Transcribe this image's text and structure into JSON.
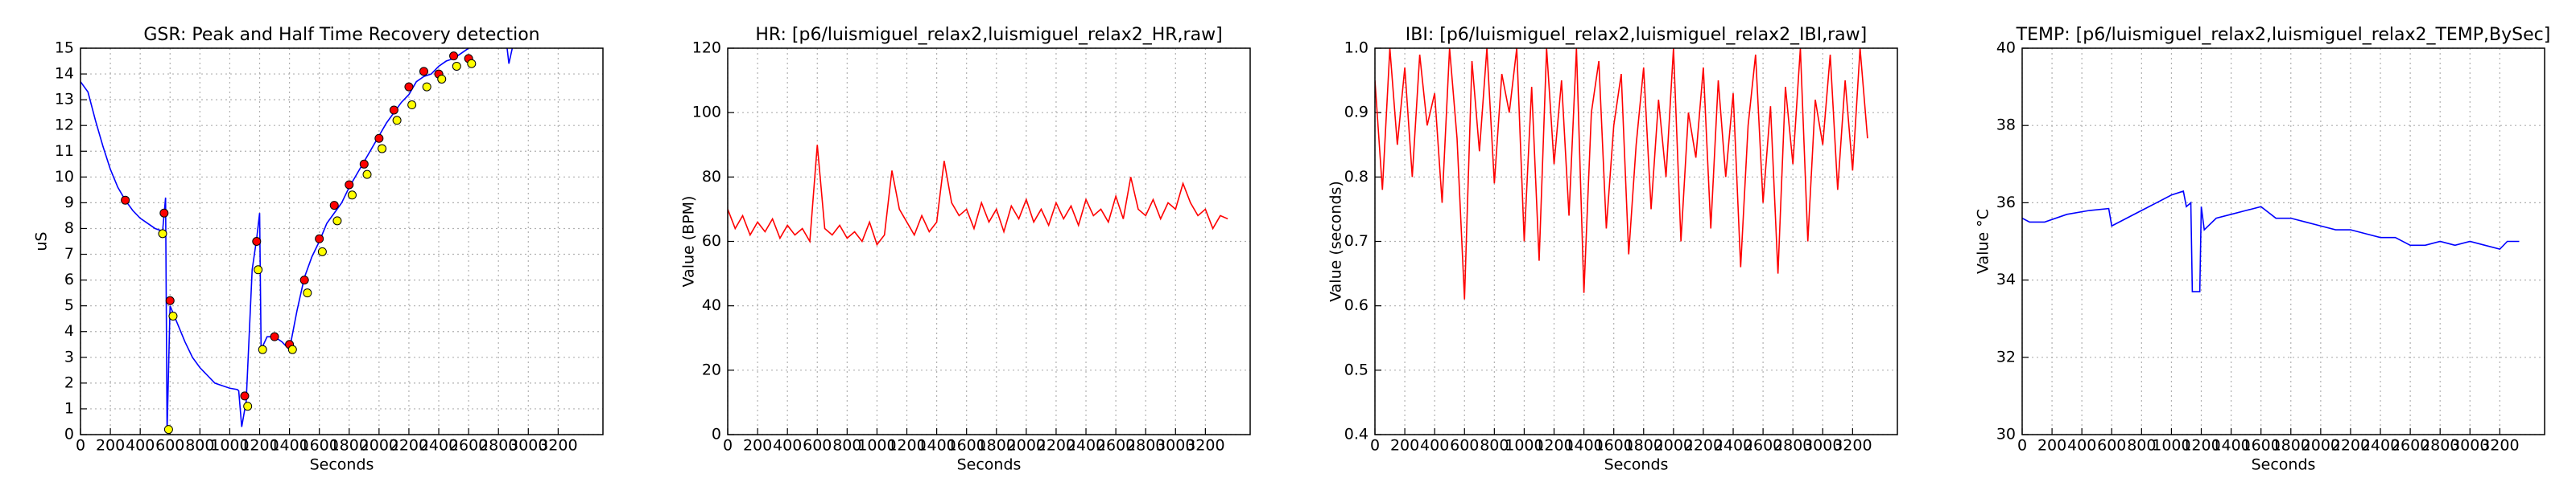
{
  "chart_data": [
    {
      "type": "line",
      "title": "GSR: Peak and Half Time Recovery detection",
      "xlabel": "Seconds",
      "ylabel": "uS",
      "xlim": [
        0,
        3500
      ],
      "xticks": [
        0,
        200,
        400,
        600,
        800,
        1000,
        1200,
        1400,
        1600,
        1800,
        2000,
        2200,
        2400,
        2600,
        2800,
        3000,
        3200
      ],
      "ylim": [
        0,
        15
      ],
      "yticks": [
        0,
        1,
        2,
        3,
        4,
        5,
        6,
        7,
        8,
        9,
        10,
        11,
        12,
        13,
        14,
        15
      ],
      "grid": true,
      "series": [
        {
          "color": "#0000ff",
          "style": "line",
          "x": [
            0,
            50,
            100,
            150,
            200,
            250,
            300,
            350,
            400,
            450,
            500,
            550,
            570,
            580,
            600,
            650,
            700,
            750,
            800,
            850,
            900,
            950,
            1000,
            1050,
            1060,
            1080,
            1110,
            1150,
            1180,
            1200,
            1210,
            1250,
            1300,
            1350,
            1400,
            1450,
            1500,
            1550,
            1600,
            1650,
            1700,
            1750,
            1800,
            1850,
            1900,
            1950,
            2000,
            2050,
            2100,
            2150,
            2200,
            2250,
            2300,
            2350,
            2400,
            2450,
            2500,
            2550,
            2600,
            2650,
            2850,
            2870,
            2900,
            3000
          ],
          "values": [
            13.7,
            13.3,
            12.2,
            11.2,
            10.3,
            9.6,
            9.1,
            8.7,
            8.4,
            8.2,
            8.0,
            7.9,
            9.2,
            0.1,
            5.0,
            4.3,
            3.6,
            3.0,
            2.6,
            2.3,
            2.0,
            1.9,
            1.8,
            1.75,
            1.7,
            0.3,
            1.3,
            6.4,
            7.6,
            8.6,
            3.3,
            3.8,
            3.8,
            3.6,
            3.3,
            4.8,
            6.1,
            6.9,
            7.5,
            8.2,
            8.6,
            9.0,
            9.6,
            10.1,
            10.6,
            11.1,
            11.6,
            12.1,
            12.5,
            12.9,
            13.2,
            13.7,
            13.9,
            14.0,
            14.3,
            14.5,
            14.6,
            14.8,
            15.0,
            15.3,
            15.4,
            14.4,
            15.2,
            15.6
          ]
        },
        {
          "color": "#ff0000",
          "style": "marker",
          "x": [
            300,
            560,
            600,
            1100,
            1180,
            1300,
            1400,
            1500,
            1600,
            1700,
            1800,
            1900,
            2000,
            2100,
            2200,
            2300,
            2400,
            2500,
            2600
          ],
          "values": [
            9.1,
            8.6,
            5.2,
            1.5,
            7.5,
            3.8,
            3.5,
            6.0,
            7.6,
            8.9,
            9.7,
            10.5,
            11.5,
            12.6,
            13.5,
            14.1,
            14.0,
            14.7,
            14.6
          ]
        },
        {
          "color": "#ffff00",
          "style": "marker",
          "x": [
            550,
            590,
            620,
            1120,
            1190,
            1220,
            1420,
            1520,
            1620,
            1720,
            1820,
            1920,
            2020,
            2120,
            2220,
            2320,
            2420,
            2520,
            2620
          ],
          "values": [
            7.8,
            0.2,
            4.6,
            1.1,
            6.4,
            3.3,
            3.3,
            5.5,
            7.1,
            8.3,
            9.3,
            10.1,
            11.1,
            12.2,
            12.8,
            13.5,
            13.8,
            14.3,
            14.4
          ]
        }
      ]
    },
    {
      "type": "line",
      "title": "HR: [p6/luismiguel_relax2,luismiguel_relax2_HR,raw]",
      "xlabel": "Seconds",
      "ylabel": "Value (BPM)",
      "xlim": [
        0,
        3500
      ],
      "xticks": [
        0,
        200,
        400,
        600,
        800,
        1000,
        1200,
        1400,
        1600,
        1800,
        2000,
        2200,
        2400,
        2600,
        2800,
        3000,
        3200
      ],
      "ylim": [
        0,
        120
      ],
      "yticks": [
        0,
        20,
        40,
        60,
        80,
        100,
        120
      ],
      "grid": true,
      "series": [
        {
          "color": "#ff0000",
          "style": "line",
          "x": [
            0,
            50,
            100,
            150,
            200,
            250,
            300,
            350,
            400,
            450,
            500,
            550,
            600,
            650,
            700,
            750,
            800,
            850,
            900,
            950,
            1000,
            1050,
            1100,
            1150,
            1200,
            1250,
            1300,
            1350,
            1400,
            1450,
            1500,
            1550,
            1600,
            1650,
            1700,
            1750,
            1800,
            1850,
            1900,
            1950,
            2000,
            2050,
            2100,
            2150,
            2200,
            2250,
            2300,
            2350,
            2400,
            2450,
            2500,
            2550,
            2600,
            2650,
            2700,
            2750,
            2800,
            2850,
            2900,
            2950,
            3000,
            3050,
            3100,
            3150,
            3200,
            3250,
            3300,
            3350
          ],
          "values": [
            70,
            64,
            68,
            62,
            66,
            63,
            67,
            61,
            65,
            62,
            64,
            60,
            90,
            64,
            62,
            65,
            61,
            63,
            60,
            66,
            59,
            62,
            82,
            70,
            66,
            62,
            68,
            63,
            66,
            85,
            72,
            68,
            70,
            64,
            72,
            66,
            70,
            63,
            71,
            67,
            73,
            66,
            70,
            65,
            72,
            67,
            71,
            65,
            73,
            68,
            70,
            66,
            74,
            67,
            80,
            70,
            68,
            73,
            67,
            72,
            70,
            78,
            72,
            68,
            70,
            64,
            68,
            67
          ]
        }
      ]
    },
    {
      "type": "line",
      "title": "IBI: [p6/luismiguel_relax2,luismiguel_relax2_IBI,raw]",
      "xlabel": "Seconds",
      "ylabel": "Value (seconds)",
      "xlim": [
        0,
        3500
      ],
      "xticks": [
        0,
        200,
        400,
        600,
        800,
        1000,
        1200,
        1400,
        1600,
        1800,
        2000,
        2200,
        2400,
        2600,
        2800,
        3000,
        3200
      ],
      "ylim": [
        0.4,
        1
      ],
      "yticks": [
        0.4,
        0.5,
        0.6,
        0.7,
        0.8,
        0.9,
        {
          "value": 1,
          "label": "1.0"
        }
      ],
      "grid": true,
      "series": [
        {
          "color": "#ff0000",
          "style": "line",
          "x": [
            0,
            50,
            100,
            150,
            200,
            250,
            300,
            350,
            400,
            450,
            500,
            550,
            600,
            650,
            700,
            750,
            800,
            850,
            900,
            950,
            1000,
            1050,
            1100,
            1150,
            1200,
            1250,
            1300,
            1350,
            1400,
            1450,
            1500,
            1550,
            1600,
            1650,
            1700,
            1750,
            1800,
            1850,
            1900,
            1950,
            2000,
            2050,
            2100,
            2150,
            2200,
            2250,
            2300,
            2350,
            2400,
            2450,
            2500,
            2550,
            2600,
            2650,
            2700,
            2750,
            2800,
            2850,
            2900,
            2950,
            3000,
            3050,
            3100,
            3150,
            3200,
            3250,
            3300
          ],
          "values": [
            0.95,
            0.78,
            1.0,
            0.85,
            0.97,
            0.8,
            0.99,
            0.88,
            0.93,
            0.76,
            1.0,
            0.86,
            0.61,
            0.98,
            0.84,
            1.0,
            0.79,
            0.96,
            0.9,
            1.0,
            0.7,
            0.94,
            0.67,
            1.0,
            0.82,
            0.95,
            0.74,
            1.0,
            0.62,
            0.9,
            0.98,
            0.72,
            0.88,
            0.96,
            0.68,
            0.85,
            0.97,
            0.75,
            0.92,
            0.8,
            1.0,
            0.7,
            0.9,
            0.83,
            0.97,
            0.72,
            0.95,
            0.8,
            0.93,
            0.66,
            0.88,
            0.99,
            0.76,
            0.91,
            0.65,
            0.94,
            0.82,
            1.0,
            0.7,
            0.92,
            0.85,
            0.99,
            0.78,
            0.95,
            0.81,
            1.0,
            0.86
          ]
        }
      ]
    },
    {
      "type": "line",
      "title": "TEMP: [p6/luismiguel_relax2,luismiguel_relax2_TEMP,BySec]",
      "xlabel": "Seconds",
      "ylabel": "Value °C",
      "xlim": [
        0,
        3500
      ],
      "xticks": [
        0,
        200,
        400,
        600,
        800,
        1000,
        1200,
        1400,
        1600,
        1800,
        2000,
        2200,
        2400,
        2600,
        2800,
        3000,
        3200
      ],
      "ylim": [
        30,
        40
      ],
      "yticks": [
        30,
        32,
        34,
        36,
        38,
        40
      ],
      "grid": true,
      "series": [
        {
          "color": "#0000ff",
          "style": "line",
          "x": [
            0,
            50,
            150,
            300,
            450,
            580,
            600,
            700,
            800,
            900,
            1000,
            1080,
            1100,
            1130,
            1140,
            1190,
            1200,
            1220,
            1300,
            1400,
            1500,
            1600,
            1700,
            1800,
            1900,
            2000,
            2100,
            2200,
            2300,
            2400,
            2500,
            2600,
            2700,
            2800,
            2900,
            3000,
            3100,
            3200,
            3250,
            3330
          ],
          "values": [
            35.6,
            35.5,
            35.5,
            35.7,
            35.8,
            35.85,
            35.4,
            35.6,
            35.8,
            36.0,
            36.2,
            36.3,
            35.9,
            36.0,
            33.7,
            33.7,
            35.9,
            35.3,
            35.6,
            35.7,
            35.8,
            35.9,
            35.6,
            35.6,
            35.5,
            35.4,
            35.3,
            35.3,
            35.2,
            35.1,
            35.1,
            34.9,
            34.9,
            35.0,
            34.9,
            35.0,
            34.9,
            34.8,
            35.0,
            35.0
          ]
        }
      ]
    }
  ]
}
